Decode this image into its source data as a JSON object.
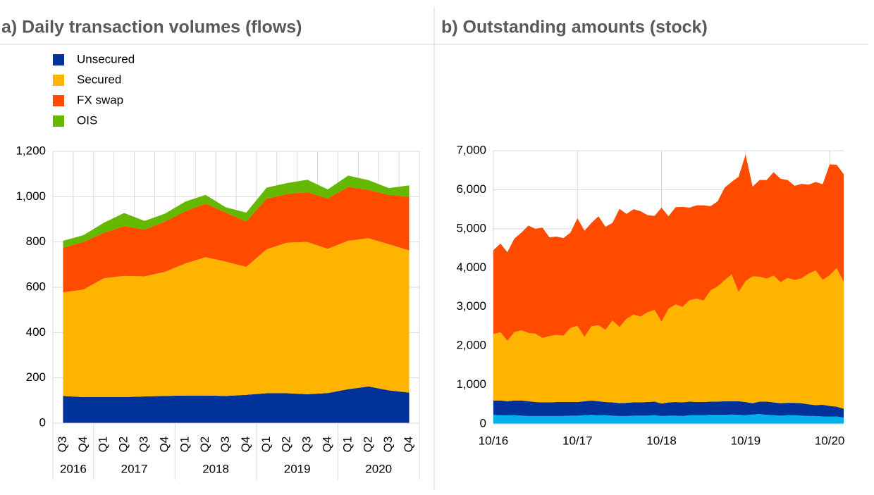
{
  "chart_data": [
    {
      "type": "area",
      "stacked": true,
      "title": "a) Daily transaction volumes (flows)",
      "categories": [
        "Q3",
        "Q4",
        "Q1",
        "Q2",
        "Q3",
        "Q4",
        "Q1",
        "Q2",
        "Q3",
        "Q4",
        "Q1",
        "Q2",
        "Q3",
        "Q4",
        "Q1",
        "Q2",
        "Q3",
        "Q4"
      ],
      "groups": [
        {
          "label": "2016",
          "count": 2
        },
        {
          "label": "2017",
          "count": 4
        },
        {
          "label": "2018",
          "count": 4
        },
        {
          "label": "2019",
          "count": 4
        },
        {
          "label": "2020",
          "count": 4
        }
      ],
      "series": [
        {
          "name": "Unsecured",
          "color": "#003299",
          "values": [
            120,
            115,
            115,
            115,
            118,
            120,
            122,
            122,
            120,
            125,
            132,
            132,
            128,
            133,
            150,
            162,
            145,
            135
          ]
        },
        {
          "name": "Secured",
          "color": "#ffb400",
          "values": [
            458,
            475,
            525,
            535,
            530,
            548,
            583,
            611,
            593,
            565,
            636,
            665,
            672,
            637,
            655,
            655,
            645,
            628
          ]
        },
        {
          "name": "FX swap",
          "color": "#ff4b00",
          "values": [
            197,
            210,
            200,
            220,
            207,
            222,
            230,
            237,
            217,
            200,
            224,
            215,
            220,
            222,
            238,
            213,
            218,
            237
          ]
        },
        {
          "name": "OIS",
          "color": "#65b800",
          "values": [
            30,
            30,
            45,
            58,
            38,
            35,
            43,
            38,
            23,
            40,
            48,
            48,
            55,
            40,
            50,
            43,
            30,
            50
          ]
        }
      ],
      "ylim": [
        0,
        1200
      ],
      "yticks": [
        0,
        200,
        400,
        600,
        800,
        {
          "value": 1000,
          "label": "1,000"
        },
        {
          "value": 1200,
          "label": "1,200"
        }
      ],
      "grid": true,
      "legend": "top-left"
    },
    {
      "type": "area",
      "stacked": true,
      "title": "b) Outstanding amounts (stock)",
      "categories": [
        "10/16",
        null,
        null,
        null,
        null,
        null,
        null,
        null,
        null,
        null,
        null,
        null,
        "10/17",
        null,
        null,
        null,
        null,
        null,
        null,
        null,
        null,
        null,
        null,
        null,
        "10/18",
        null,
        null,
        null,
        null,
        null,
        null,
        null,
        null,
        null,
        null,
        null,
        "10/19",
        null,
        null,
        null,
        null,
        null,
        null,
        null,
        null,
        null,
        null,
        null,
        "10/20",
        null,
        null
      ],
      "series": [
        {
          "color": "#00b1ea",
          "values": [
            230,
            220,
            220,
            220,
            210,
            200,
            200,
            200,
            200,
            200,
            200,
            210,
            210,
            220,
            230,
            220,
            220,
            210,
            200,
            200,
            210,
            210,
            210,
            220,
            200,
            210,
            210,
            200,
            220,
            220,
            220,
            230,
            230,
            230,
            240,
            230,
            220,
            240,
            250,
            230,
            220,
            210,
            220,
            220,
            210,
            200,
            200,
            190,
            190,
            190,
            160
          ]
        },
        {
          "color": "#003299",
          "values": [
            370,
            380,
            360,
            380,
            390,
            380,
            360,
            350,
            350,
            360,
            360,
            350,
            350,
            360,
            370,
            360,
            340,
            340,
            330,
            340,
            340,
            340,
            350,
            350,
            320,
            340,
            350,
            350,
            350,
            340,
            340,
            340,
            340,
            350,
            340,
            350,
            340,
            290,
            320,
            340,
            330,
            320,
            320,
            320,
            320,
            300,
            280,
            300,
            270,
            250,
            230
          ]
        },
        {
          "color": "#ffb400",
          "values": [
            1700,
            1750,
            1550,
            1750,
            1800,
            1750,
            1750,
            1650,
            1700,
            1720,
            1700,
            1900,
            1950,
            1650,
            1900,
            1950,
            1850,
            2100,
            1950,
            2150,
            2250,
            2200,
            2300,
            2350,
            2100,
            2400,
            2500,
            2450,
            2600,
            2650,
            2600,
            2850,
            2950,
            3100,
            3250,
            2800,
            3100,
            3250,
            3200,
            3150,
            3250,
            3100,
            3200,
            3150,
            3200,
            3350,
            3450,
            3200,
            3350,
            3550,
            3250
          ]
        },
        {
          "color": "#ff4b00",
          "values": [
            2150,
            2270,
            2270,
            2400,
            2500,
            2750,
            2690,
            2830,
            2530,
            2520,
            2500,
            2440,
            2760,
            2720,
            2650,
            2790,
            2640,
            2500,
            3030,
            2690,
            2700,
            2700,
            2490,
            2410,
            2920,
            2370,
            2490,
            2560,
            2370,
            2390,
            2440,
            2160,
            2180,
            2370,
            2370,
            2950,
            3240,
            2300,
            2480,
            2530,
            2650,
            2650,
            2510,
            2410,
            2420,
            2280,
            2270,
            2450,
            2840,
            2650,
            2760
          ]
        }
      ],
      "ylim": [
        0,
        7000
      ],
      "yticks": [
        0,
        {
          "value": 1000,
          "label": "1,000"
        },
        {
          "value": 2000,
          "label": "2,000"
        },
        {
          "value": 3000,
          "label": "3,000"
        },
        {
          "value": 4000,
          "label": "4,000"
        },
        {
          "value": 5000,
          "label": "5,000"
        },
        {
          "value": 6000,
          "label": "6,000"
        },
        {
          "value": 7000,
          "label": "7,000"
        }
      ],
      "grid": true
    }
  ]
}
